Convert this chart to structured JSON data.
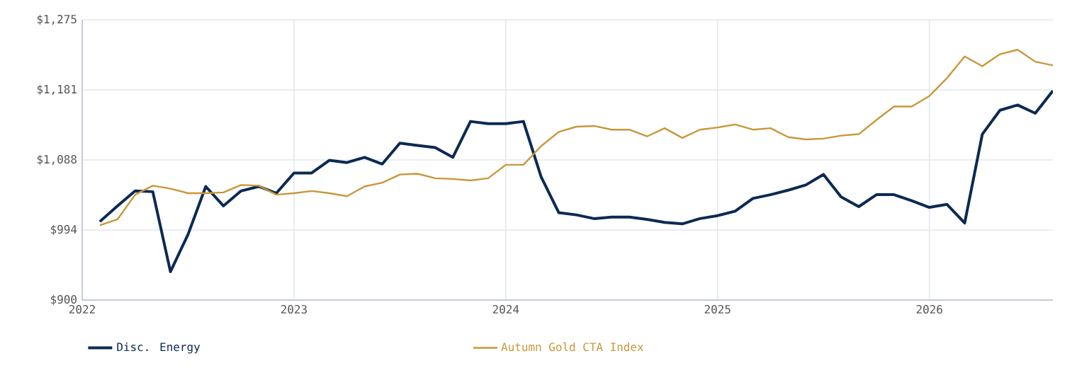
{
  "chart_data": {
    "type": "line",
    "x": [
      "2022-02",
      "2022-03",
      "2022-04",
      "2022-05",
      "2022-06",
      "2022-07",
      "2022-08",
      "2022-09",
      "2022-10",
      "2022-11",
      "2022-12",
      "2023-01",
      "2023-02",
      "2023-03",
      "2023-04",
      "2023-05",
      "2023-06",
      "2023-07",
      "2023-08",
      "2023-09",
      "2023-10",
      "2023-11",
      "2023-12",
      "2024-01",
      "2024-02",
      "2024-03",
      "2024-04",
      "2024-05",
      "2024-06",
      "2024-07",
      "2024-08",
      "2024-09",
      "2024-10",
      "2024-11",
      "2024-12",
      "2025-01",
      "2025-02",
      "2025-03",
      "2025-04",
      "2025-05",
      "2025-06",
      "2025-07",
      "2025-08",
      "2025-09",
      "2025-10",
      "2025-11",
      "2025-12",
      "2026-01",
      "2026-02",
      "2026-03",
      "2026-04",
      "2026-05",
      "2026-06",
      "2026-07",
      "2026-08"
    ],
    "series": [
      {
        "name": "Disc. Energy",
        "color": "#0b2a53",
        "values": [
          1005,
          1026,
          1046,
          1045,
          938,
          988,
          1052,
          1026,
          1046,
          1052,
          1043,
          1070,
          1070,
          1087,
          1084,
          1091,
          1082,
          1110,
          1107,
          1104,
          1091,
          1139,
          1136,
          1136,
          1139,
          1065,
          1017,
          1014,
          1009,
          1011,
          1011,
          1008,
          1004,
          1002,
          1009,
          1013,
          1019,
          1036,
          1041,
          1047,
          1054,
          1068,
          1038,
          1025,
          1041,
          1041,
          1033,
          1024,
          1028,
          1003,
          1122,
          1154,
          1161,
          1150,
          1180
        ]
      },
      {
        "name": "Autumn Gold CTA Index",
        "color": "#c9973a",
        "values": [
          1000,
          1008,
          1041,
          1053,
          1049,
          1043,
          1043,
          1044,
          1054,
          1053,
          1041,
          1043,
          1046,
          1043,
          1039,
          1052,
          1057,
          1068,
          1069,
          1063,
          1062,
          1060,
          1063,
          1081,
          1081,
          1106,
          1125,
          1132,
          1133,
          1128,
          1128,
          1119,
          1130,
          1117,
          1128,
          1131,
          1135,
          1128,
          1130,
          1118,
          1115,
          1116,
          1120,
          1122,
          1141,
          1159,
          1159,
          1173,
          1197,
          1226,
          1213,
          1229,
          1235,
          1219,
          1214
        ]
      }
    ],
    "xlim": [
      "2022-01",
      "2026-08"
    ],
    "xticks": [
      "2022",
      "2023",
      "2024",
      "2025",
      "2026"
    ],
    "ylim": [
      900,
      1275
    ],
    "yticks": [
      {
        "value": 900,
        "label": "$900"
      },
      {
        "value": 993.75,
        "label": "$994"
      },
      {
        "value": 1087.5,
        "label": "$1,088"
      },
      {
        "value": 1181.25,
        "label": "$1,181"
      },
      {
        "value": 1275,
        "label": "$1,275"
      }
    ],
    "grid": true,
    "legend": "bottom",
    "marker": "none",
    "line_style": "solid"
  }
}
